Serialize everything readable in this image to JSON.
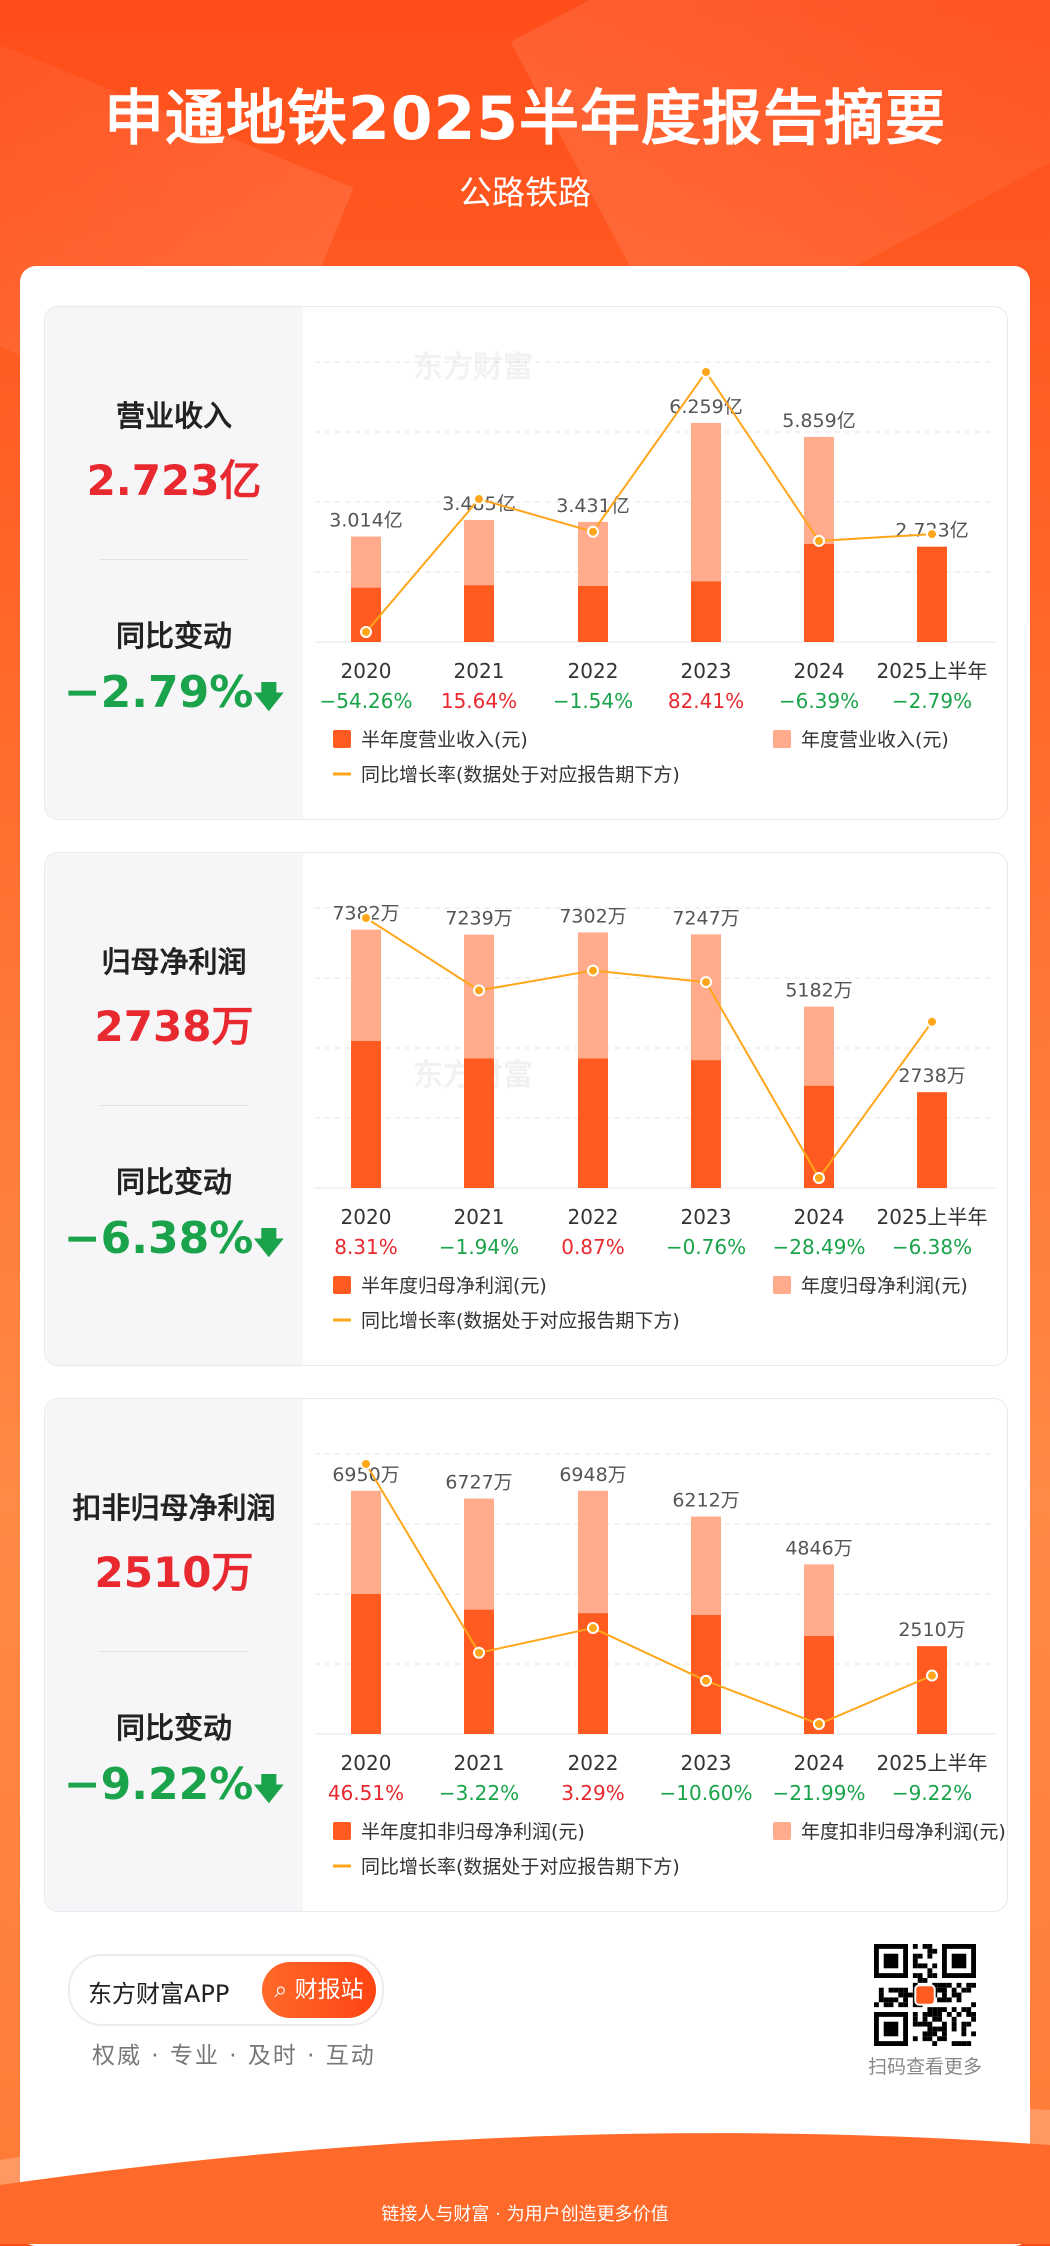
{
  "header": {
    "title": "申通地铁2025半年度报告摘要",
    "subtitle": "公路铁路"
  },
  "colors": {
    "half_bar": "#ff5a1f",
    "annual_bar": "#ffab8c",
    "line": "#ffa61a",
    "positive": "#e8292f",
    "negative": "#1aa34a"
  },
  "sections": [
    {
      "metric_label": "营业收入",
      "metric_value": "2.723亿",
      "change_label": "同比变动",
      "change_value": "−2.79%",
      "change_arrow": "🡇",
      "watermark": "东方财富",
      "watermark_pos": "top",
      "legend": {
        "half": "半年度营业收入(元)",
        "annual": "年度营业收入(元)",
        "line": "同比增长率(数据处于对应报告期下方)"
      },
      "chart_data": {
        "type": "bar",
        "categories": [
          "2020",
          "2021",
          "2022",
          "2023",
          "2024",
          "2025上半年"
        ],
        "series": [
          {
            "name": "半年度营业收入(元)",
            "values": [
              1.55,
              1.62,
              1.6,
              1.73,
              2.8,
              2.723
            ]
          },
          {
            "name": "年度营业收入(元)",
            "values": [
              3.014,
              3.485,
              3.431,
              6.259,
              5.859,
              null
            ]
          },
          {
            "name": "同比增长率(数据处于对应报告期下方)",
            "values": [
              -54.26,
              15.64,
              -1.54,
              82.41,
              -6.39,
              -2.79
            ]
          }
        ],
        "bar_labels": [
          "3.014亿",
          "3.485亿",
          "3.431亿",
          "6.259亿",
          "5.859亿",
          "2.723亿"
        ],
        "growth_labels": [
          "−54.26%",
          "15.64%",
          "−1.54%",
          "82.41%",
          "−6.39%",
          "−2.79%"
        ],
        "ylim": [
          0,
          8
        ]
      }
    },
    {
      "metric_label": "归母净利润",
      "metric_value": "2738万",
      "change_label": "同比变动",
      "change_value": "−6.38%",
      "change_arrow": "🡇",
      "watermark": "东方财富",
      "watermark_pos": "mid",
      "legend": {
        "half": "半年度归母净利润(元)",
        "annual": "年度归母净利润(元)",
        "line": "同比增长率(数据处于对应报告期下方)"
      },
      "chart_data": {
        "type": "bar",
        "categories": [
          "2020",
          "2021",
          "2022",
          "2023",
          "2024",
          "2025上半年"
        ],
        "series": [
          {
            "name": "半年度归母净利润(元)",
            "values": [
              4200,
              3700,
              3700,
              3650,
              2920,
              2738
            ]
          },
          {
            "name": "年度归母净利润(元)",
            "values": [
              7382,
              7239,
              7302,
              7247,
              5182,
              null
            ]
          },
          {
            "name": "同比增长率(数据处于对应报告期下方)",
            "values": [
              8.31,
              -1.94,
              0.87,
              -0.76,
              -28.49,
              -6.38
            ]
          }
        ],
        "bar_labels": [
          "7382万",
          "7239万",
          "7302万",
          "7247万",
          "5182万",
          "2738万"
        ],
        "growth_labels": [
          "8.31%",
          "−1.94%",
          "0.87%",
          "−0.76%",
          "−28.49%",
          "−6.38%"
        ],
        "ylim": [
          0,
          8000
        ]
      }
    },
    {
      "metric_label": "扣非归母净利润",
      "metric_value": "2510万",
      "change_label": "同比变动",
      "change_value": "−9.22%",
      "change_arrow": "🡇",
      "watermark": "",
      "watermark_pos": "none",
      "legend": {
        "half": "半年度扣非归母净利润(元)",
        "annual": "年度扣非归母净利润(元)",
        "line": "同比增长率(数据处于对应报告期下方)"
      },
      "chart_data": {
        "type": "bar",
        "categories": [
          "2020",
          "2021",
          "2022",
          "2023",
          "2024",
          "2025上半年"
        ],
        "series": [
          {
            "name": "半年度扣非归母净利润(元)",
            "values": [
              4000,
              3550,
              3450,
              3400,
              2800,
              2510
            ]
          },
          {
            "name": "年度扣非归母净利润(元)",
            "values": [
              6950,
              6727,
              6948,
              6212,
              4846,
              null
            ]
          },
          {
            "name": "同比增长率(数据处于对应报告期下方)",
            "values": [
              46.51,
              -3.22,
              3.29,
              -10.6,
              -21.99,
              -9.22
            ]
          }
        ],
        "bar_labels": [
          "6950万",
          "6727万",
          "6948万",
          "6212万",
          "4846万",
          "2510万"
        ],
        "growth_labels": [
          "46.51%",
          "−3.22%",
          "3.29%",
          "−10.60%",
          "−21.99%",
          "−9.22%"
        ],
        "ylim": [
          0,
          8000
        ]
      }
    }
  ],
  "footer": {
    "app_name": "东方财富APP",
    "button_label": "财报站",
    "tagline": "权威 · 专业 · 及时 · 互动",
    "qr_caption": "扫码查看更多",
    "bottom_text": "链接人与财富 · 为用户创造更多价值"
  }
}
